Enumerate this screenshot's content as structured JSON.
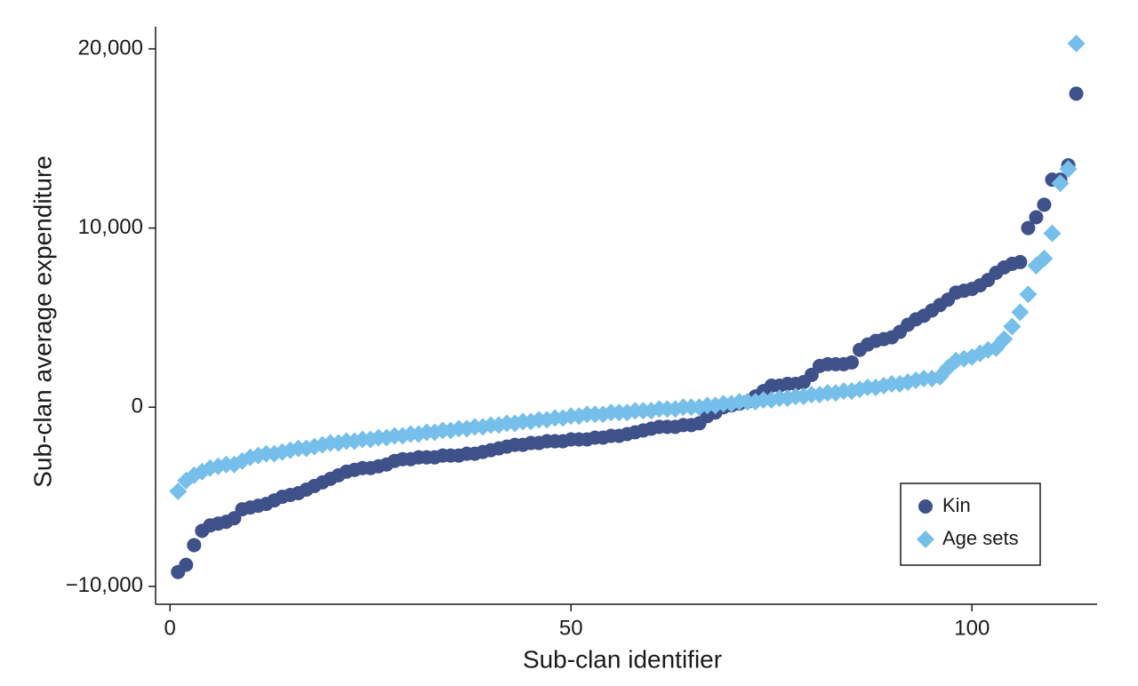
{
  "chart_data": {
    "type": "scatter",
    "x_label": "Sub-clan identifier",
    "y_label": "Sub-clan average expenditure",
    "x": [
      1,
      2,
      3,
      4,
      5,
      6,
      7,
      8,
      9,
      10,
      11,
      12,
      13,
      14,
      15,
      16,
      17,
      18,
      19,
      20,
      21,
      22,
      23,
      24,
      25,
      26,
      27,
      28,
      29,
      30,
      31,
      32,
      33,
      34,
      35,
      36,
      37,
      38,
      39,
      40,
      41,
      42,
      43,
      44,
      45,
      46,
      47,
      48,
      49,
      50,
      51,
      52,
      53,
      54,
      55,
      56,
      57,
      58,
      59,
      60,
      61,
      62,
      63,
      64,
      65,
      66,
      67,
      68,
      69,
      70,
      71,
      72,
      73,
      74,
      75,
      76,
      77,
      78,
      79,
      80,
      81,
      82,
      83,
      84,
      85,
      86,
      87,
      88,
      89,
      90,
      91,
      92,
      93,
      94,
      95,
      96,
      97,
      98,
      99,
      100,
      101,
      102,
      103,
      104,
      105,
      106,
      107,
      108,
      109,
      110,
      111,
      112,
      113
    ],
    "series": [
      {
        "name": "Kin",
        "color": "#3f5189",
        "marker": "circle",
        "values": [
          -9200,
          -8800,
          -7700,
          -6900,
          -6600,
          -6500,
          -6400,
          -6200,
          -5700,
          -5600,
          -5500,
          -5400,
          -5200,
          -5000,
          -4900,
          -4800,
          -4600,
          -4400,
          -4200,
          -4000,
          -3800,
          -3600,
          -3500,
          -3400,
          -3400,
          -3300,
          -3200,
          -3000,
          -2900,
          -2900,
          -2800,
          -2800,
          -2800,
          -2700,
          -2700,
          -2700,
          -2600,
          -2600,
          -2500,
          -2400,
          -2300,
          -2200,
          -2100,
          -2100,
          -2000,
          -2000,
          -1900,
          -1900,
          -1900,
          -1800,
          -1800,
          -1800,
          -1700,
          -1700,
          -1600,
          -1600,
          -1500,
          -1400,
          -1300,
          -1200,
          -1100,
          -1100,
          -1100,
          -1000,
          -1000,
          -900,
          -500,
          -300,
          0,
          100,
          200,
          300,
          600,
          900,
          1200,
          1200,
          1300,
          1300,
          1400,
          1800,
          2300,
          2400,
          2400,
          2400,
          2500,
          3200,
          3500,
          3700,
          3800,
          3900,
          4200,
          4600,
          4900,
          5100,
          5400,
          5700,
          6000,
          6400,
          6500,
          6600,
          6800,
          7100,
          7500,
          7800,
          8000,
          8100,
          10000,
          10600,
          11300,
          12700,
          12700,
          13500,
          17500
        ]
      },
      {
        "name": "Age sets",
        "color": "#76bfea",
        "marker": "diamond",
        "values": [
          -4700,
          -4100,
          -3800,
          -3600,
          -3400,
          -3300,
          -3200,
          -3200,
          -3000,
          -2800,
          -2700,
          -2600,
          -2600,
          -2500,
          -2400,
          -2300,
          -2300,
          -2200,
          -2100,
          -2000,
          -2000,
          -1900,
          -1900,
          -1800,
          -1800,
          -1700,
          -1700,
          -1600,
          -1600,
          -1500,
          -1500,
          -1400,
          -1400,
          -1300,
          -1300,
          -1200,
          -1200,
          -1100,
          -1100,
          -1000,
          -1000,
          -900,
          -900,
          -800,
          -800,
          -700,
          -700,
          -600,
          -600,
          -500,
          -500,
          -400,
          -400,
          -400,
          -300,
          -300,
          -300,
          -200,
          -200,
          -200,
          -100,
          -100,
          -100,
          0,
          0,
          0,
          100,
          100,
          200,
          200,
          300,
          300,
          300,
          400,
          400,
          500,
          500,
          600,
          600,
          700,
          700,
          800,
          800,
          900,
          900,
          1000,
          1100,
          1100,
          1200,
          1300,
          1300,
          1400,
          1500,
          1600,
          1600,
          1700,
          2200,
          2600,
          2700,
          2800,
          3000,
          3200,
          3300,
          3800,
          4500,
          5300,
          6300,
          7900,
          8300,
          9700,
          12500,
          13300,
          20300
        ]
      }
    ],
    "xlim": [
      -1.8,
      115.6
    ],
    "xticks": [
      0,
      50,
      100
    ],
    "ylim": [
      -11000,
      21240
    ],
    "yticks": [
      {
        "value": -10000,
        "label": "−10,000"
      },
      0,
      {
        "value": 10000,
        "label": "10,000"
      },
      {
        "value": 20000,
        "label": "20,000"
      }
    ],
    "grid": false,
    "legend": "lower right"
  }
}
